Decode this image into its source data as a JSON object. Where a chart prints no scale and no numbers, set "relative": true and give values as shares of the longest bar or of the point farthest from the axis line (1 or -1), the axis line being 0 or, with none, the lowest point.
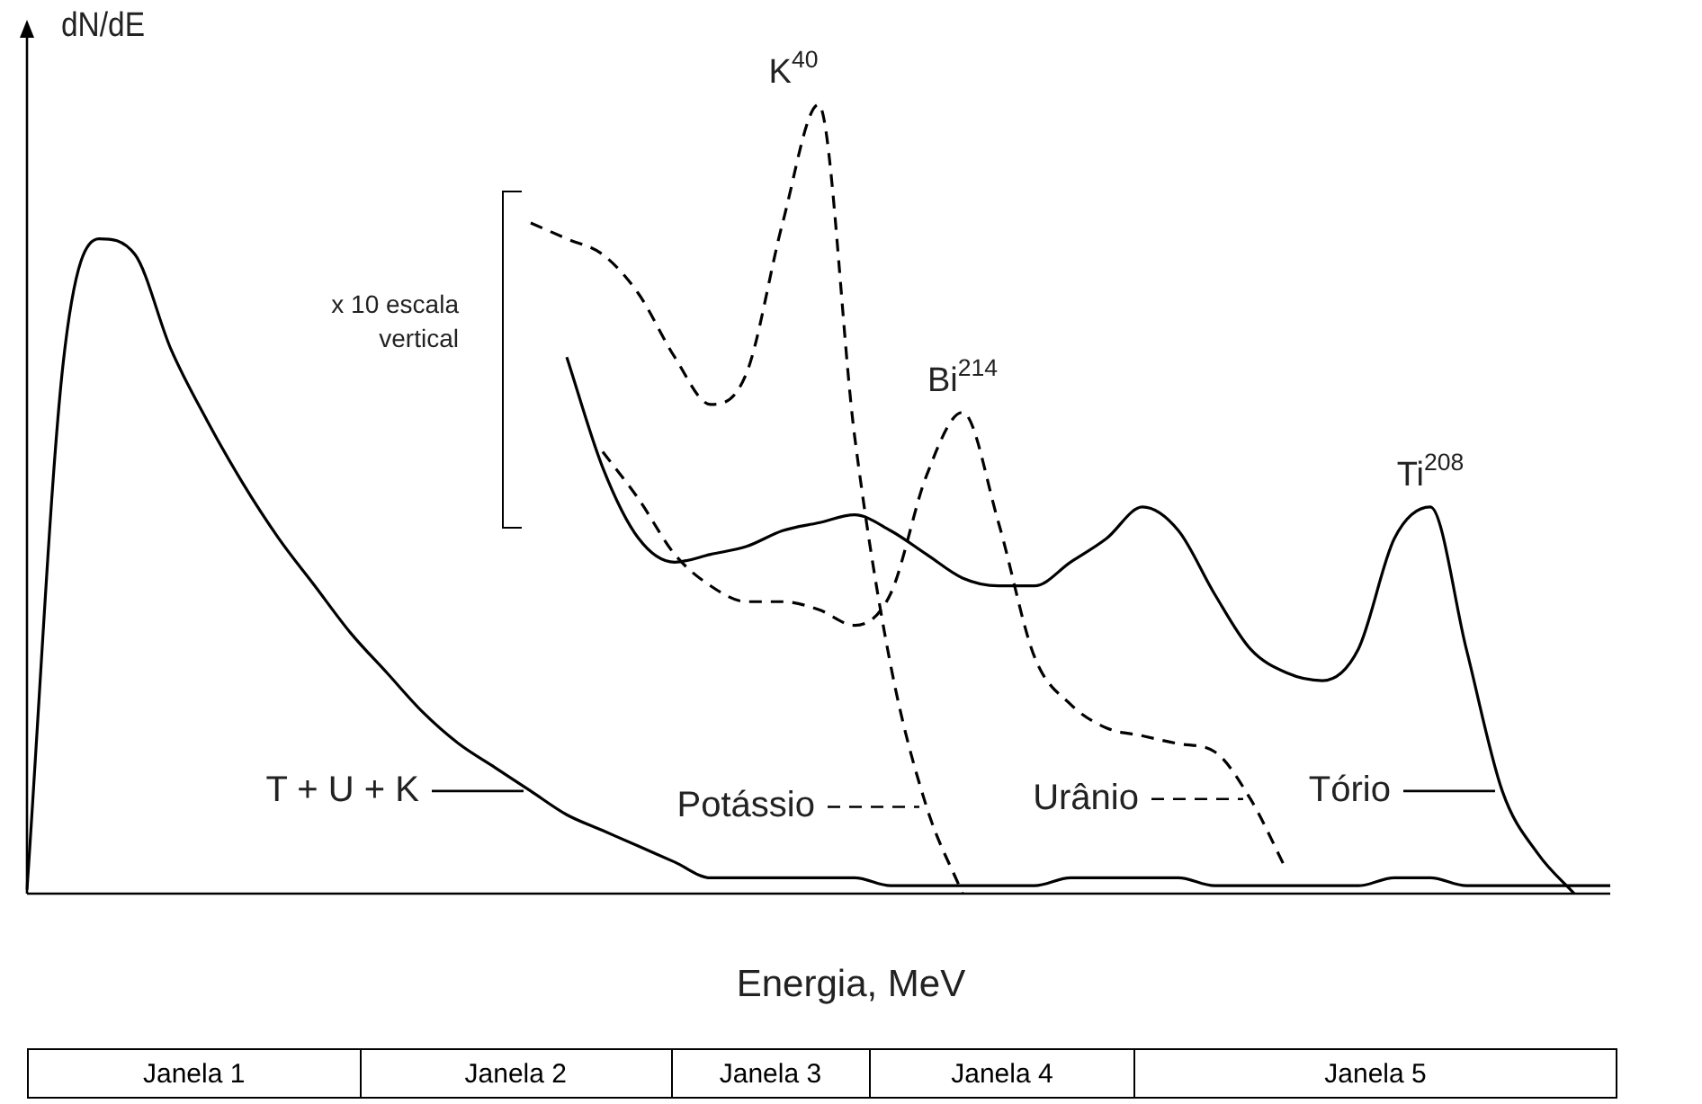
{
  "chart_data": {
    "type": "line",
    "relative": true,
    "xlabel": "Energia, MeV",
    "ylabel": "dN/dE",
    "legend": "bottom",
    "categories": [
      null,
      null,
      null,
      null,
      null,
      null,
      null,
      null,
      null,
      null,
      null,
      null,
      null,
      null,
      null,
      null,
      null,
      null,
      null,
      null,
      null,
      null,
      null,
      null,
      null,
      null,
      null,
      null,
      null,
      null,
      null,
      null,
      null,
      null,
      null,
      null,
      null,
      null,
      null,
      null,
      null,
      null,
      null,
      null,
      null
    ],
    "series": [
      {
        "name": "T + U + K",
        "color": "#000000",
        "line_style": "solid",
        "values": [
          0.005,
          0.67,
          0.83,
          0.81,
          0.69,
          0.6,
          0.52,
          0.45,
          0.39,
          0.33,
          0.28,
          0.23,
          0.19,
          0.16,
          0.13,
          0.1,
          0.08,
          0.06,
          0.04,
          0.02,
          0.02,
          0.02,
          0.02,
          0.02,
          0.01,
          0.01,
          0.01,
          0.01,
          0.01,
          0.02,
          0.02,
          0.02,
          0.02,
          0.01,
          0.01,
          0.01,
          0.01,
          0.01,
          0.02,
          0.02,
          0.01,
          0.01,
          0.01,
          0.01,
          0.01
        ]
      },
      {
        "name": "Potássio",
        "color": "#000000",
        "line_style": "dashed",
        "values": [
          null,
          null,
          null,
          null,
          null,
          null,
          null,
          null,
          null,
          null,
          null,
          null,
          null,
          null,
          0.85,
          0.83,
          0.81,
          0.76,
          0.68,
          0.62,
          0.66,
          0.85,
          1,
          0.58,
          0.29,
          0.11,
          0,
          null,
          null,
          null,
          null,
          null,
          null,
          null,
          null,
          null,
          null,
          null,
          null,
          null,
          null,
          null,
          null,
          null,
          null
        ]
      },
      {
        "name": "Urânio",
        "color": "#000000",
        "line_style": "dashed",
        "values": [
          null,
          null,
          null,
          null,
          null,
          null,
          null,
          null,
          null,
          null,
          null,
          null,
          null,
          null,
          null,
          null,
          0.56,
          0.5,
          0.43,
          0.39,
          0.37,
          0.37,
          0.36,
          0.34,
          0.38,
          0.53,
          0.61,
          0.47,
          0.3,
          0.24,
          0.21,
          0.2,
          0.19,
          0.18,
          0.12,
          0.03,
          null,
          null,
          null,
          null,
          null,
          null,
          null,
          null,
          null
        ]
      },
      {
        "name": "Tório",
        "color": "#000000",
        "line_style": "solid",
        "values": [
          null,
          null,
          null,
          null,
          null,
          null,
          null,
          null,
          null,
          null,
          null,
          null,
          null,
          null,
          null,
          0.68,
          0.54,
          0.45,
          0.42,
          0.43,
          0.44,
          0.46,
          0.47,
          0.48,
          0.46,
          0.43,
          0.4,
          0.39,
          0.39,
          0.42,
          0.45,
          0.49,
          0.46,
          0.38,
          0.31,
          0.28,
          0.27,
          0.31,
          0.45,
          0.49,
          0.31,
          0.13,
          0.05,
          0,
          null
        ]
      }
    ],
    "annotations": [
      "K$^{40}$",
      "Bi$^{214}$",
      "Ti$^{208}$",
      "x 10 escala vertical",
      "Janela 1",
      "Janela 2",
      "Janela 3",
      "Janela 4",
      "Janela 5"
    ]
  }
}
